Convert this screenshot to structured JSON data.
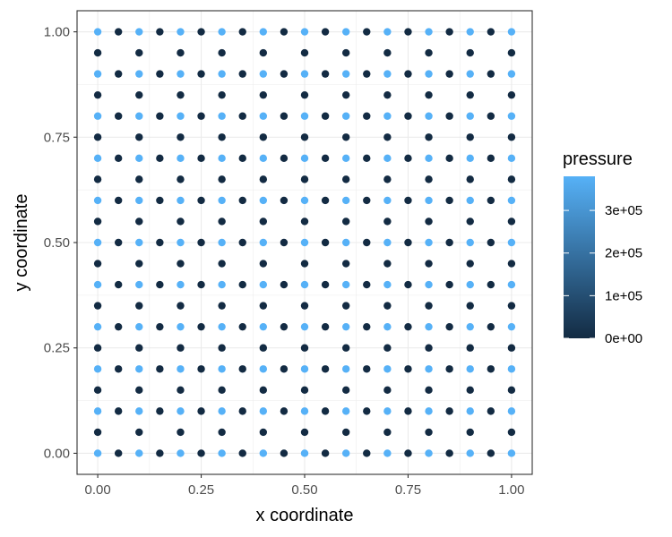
{
  "chart_data": {
    "type": "scatter",
    "xlabel": "x coordinate",
    "ylabel": "y coordinate",
    "xlim": [
      -0.05,
      1.05
    ],
    "ylim": [
      -0.05,
      1.05
    ],
    "x_ticks": [
      0,
      0.25,
      0.5,
      0.75,
      1
    ],
    "x_tick_labels": [
      "0.00",
      "0.25",
      "0.50",
      "0.75",
      "1.00"
    ],
    "y_ticks": [
      0,
      0.25,
      0.5,
      0.75,
      1
    ],
    "y_tick_labels": [
      "0.00",
      "0.25",
      "0.50",
      "0.75",
      "1.00"
    ],
    "grid": true,
    "color_variable": "pressure",
    "colorbar": {
      "title": "pressure",
      "min": 0,
      "max": 380000,
      "ticks": [
        0,
        100000,
        200000,
        300000
      ],
      "tick_labels": [
        "0e+00",
        "1e+05",
        "2e+05",
        "3e+05"
      ],
      "low_color": "#132B43",
      "high_color": "#56B1F7",
      "position": "right"
    },
    "points": {
      "description": "Points on a 0.05 grid over [0,1]x[0,1]. Rows with y on a 0.1 multiple hold points at every x-step; other rows hold points only at x on 0.1 multiples. Points where both x and y are 0.1 multiples carry high pressure; all others carry low pressure.",
      "step": 0.05,
      "high_value": 380000,
      "low_value": 0
    }
  }
}
